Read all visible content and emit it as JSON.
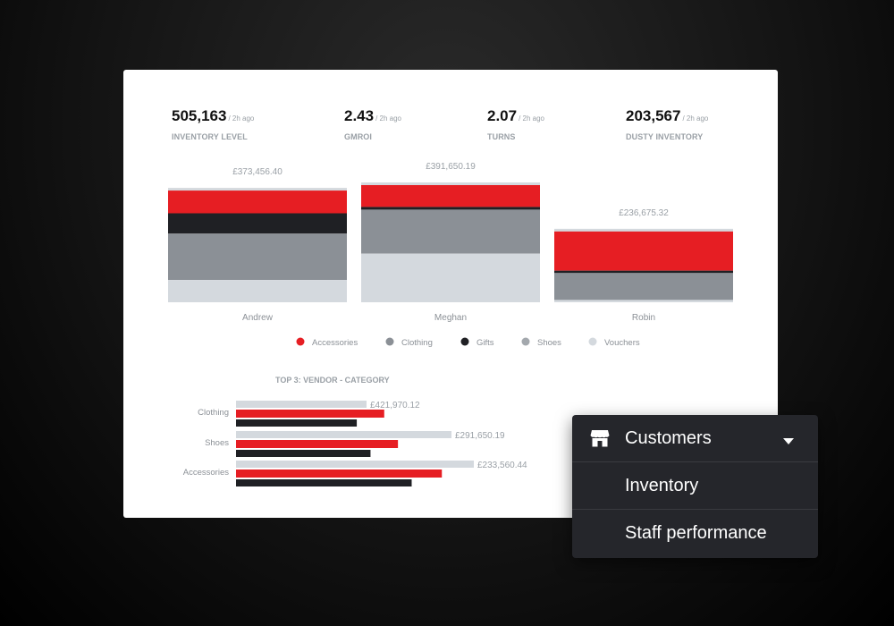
{
  "kpis": [
    {
      "value": "505,163",
      "ago": "/ 2h ago",
      "label": "INVENTORY LEVEL"
    },
    {
      "value": "2.43",
      "ago": "/ 2h ago",
      "label": "GMROI"
    },
    {
      "value": "2.07",
      "ago": "/ 2h ago",
      "label": "TURNS"
    },
    {
      "value": "203,567",
      "ago": "/ 2h ago",
      "label": "DUSTY INVENTORY"
    }
  ],
  "colors": {
    "Accessories": "#e61e23",
    "Clothing": "#8b9096",
    "Gifts": "#1f2024",
    "Shoes": "#8b9096",
    "Vouchers": "#d4d9de"
  },
  "chart_data": [
    {
      "type": "bar",
      "stacked": true,
      "categories": [
        "Andrew",
        "Meghan",
        "Robin"
      ],
      "totals_labels": [
        "£373,456.40",
        "£391,650.19",
        "£236,675.32"
      ],
      "totals": [
        373456.4,
        391650.19,
        236675.32
      ],
      "series": [
        {
          "name": "Accessories",
          "values": [
            76000,
            73000,
            131000
          ]
        },
        {
          "name": "Clothing",
          "values": [
            155000,
            147000,
            90000
          ]
        },
        {
          "name": "Gifts",
          "values": [
            68000,
            9000,
            8000
          ]
        },
        {
          "name": "Shoes",
          "values": [
            0,
            0,
            0
          ]
        },
        {
          "name": "Vouchers",
          "values": [
            74456.4,
            162650.19,
            7675.32
          ]
        }
      ],
      "stack_order_top_to_bottom": [
        "Accessories",
        "Gifts",
        "Clothing",
        "Vouchers"
      ],
      "legend": [
        "Accessories",
        "Clothing",
        "Gifts",
        "Shoes",
        "Vouchers"
      ],
      "legend_position": "bottom"
    },
    {
      "type": "bar",
      "orientation": "horizontal",
      "title": "TOP 3: VENDOR - CATEGORY",
      "categories": [
        "Clothing",
        "Shoes",
        "Accessories"
      ],
      "value_labels": [
        "£421,970.12",
        "£291,650.19",
        "£233,560.44"
      ],
      "series": [
        {
          "values": [
            421970.12,
            291650.19,
            233560.44
          ]
        },
        {
          "values": [
            0.54,
            0.59,
            0.75
          ]
        },
        {
          "values": [
            0.44,
            0.49,
            0.64
          ]
        }
      ]
    }
  ],
  "dropdown": {
    "selected": "Customers",
    "options": [
      "Inventory",
      "Staff performance"
    ]
  }
}
